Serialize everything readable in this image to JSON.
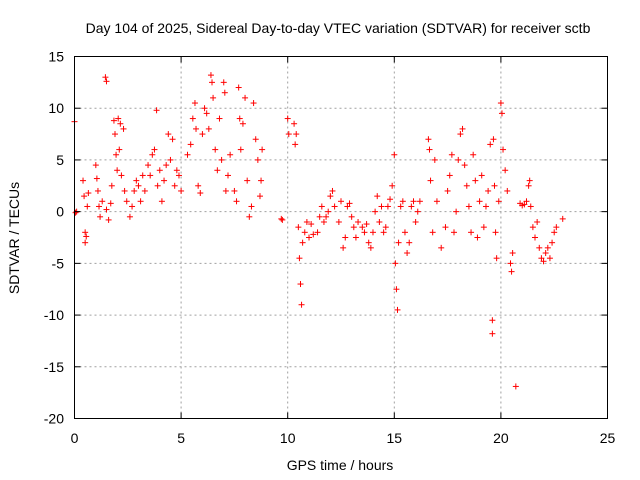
{
  "chart_data": {
    "type": "scatter",
    "title": "Day 104 of 2025, Sidereal Day-to-day VTEC variation (SDTVAR) for receiver sctb",
    "xlabel": "GPS time / hours",
    "ylabel": "SDTVAR / TECUs",
    "xlim": [
      0,
      25
    ],
    "ylim": [
      -20,
      15
    ],
    "xticks": [
      0,
      5,
      10,
      15,
      20,
      25
    ],
    "yticks": [
      -20,
      -15,
      -10,
      -5,
      0,
      5,
      10,
      15
    ],
    "grid": true,
    "marker": "+",
    "marker_color": "#ff0000",
    "series": [
      {
        "name": "SDTVAR",
        "points": [
          [
            0.0,
            8.7
          ],
          [
            0.05,
            -0.1
          ],
          [
            0.1,
            0.0
          ],
          [
            0.4,
            3.0
          ],
          [
            0.45,
            1.5
          ],
          [
            0.5,
            -2.0
          ],
          [
            0.5,
            -3.0
          ],
          [
            0.55,
            -2.4
          ],
          [
            0.6,
            0.5
          ],
          [
            0.65,
            1.8
          ],
          [
            1.0,
            4.5
          ],
          [
            1.05,
            3.2
          ],
          [
            1.1,
            2.0
          ],
          [
            1.15,
            0.5
          ],
          [
            1.2,
            -0.5
          ],
          [
            1.3,
            1.0
          ],
          [
            1.45,
            13.0
          ],
          [
            1.5,
            12.6
          ],
          [
            1.5,
            0.2
          ],
          [
            1.6,
            -0.8
          ],
          [
            1.7,
            0.8
          ],
          [
            1.75,
            2.5
          ],
          [
            1.85,
            8.8
          ],
          [
            1.9,
            7.5
          ],
          [
            1.95,
            5.5
          ],
          [
            2.0,
            4.0
          ],
          [
            2.05,
            9.0
          ],
          [
            2.1,
            6.0
          ],
          [
            2.15,
            8.5
          ],
          [
            2.2,
            3.5
          ],
          [
            2.3,
            8.0
          ],
          [
            2.35,
            2.0
          ],
          [
            2.45,
            1.0
          ],
          [
            2.6,
            -0.5
          ],
          [
            2.7,
            0.5
          ],
          [
            2.8,
            2.0
          ],
          [
            2.9,
            3.0
          ],
          [
            3.0,
            2.5
          ],
          [
            3.1,
            1.0
          ],
          [
            3.2,
            3.5
          ],
          [
            3.3,
            2.0
          ],
          [
            3.45,
            4.5
          ],
          [
            3.55,
            3.5
          ],
          [
            3.65,
            5.5
          ],
          [
            3.75,
            6.0
          ],
          [
            3.85,
            9.8
          ],
          [
            3.9,
            2.5
          ],
          [
            4.0,
            4.0
          ],
          [
            4.1,
            1.0
          ],
          [
            4.2,
            3.0
          ],
          [
            4.3,
            4.5
          ],
          [
            4.4,
            7.5
          ],
          [
            4.5,
            5.0
          ],
          [
            4.6,
            7.0
          ],
          [
            4.7,
            2.5
          ],
          [
            4.8,
            4.0
          ],
          [
            4.9,
            3.5
          ],
          [
            5.0,
            2.0
          ],
          [
            5.3,
            5.5
          ],
          [
            5.45,
            6.5
          ],
          [
            5.55,
            9.0
          ],
          [
            5.65,
            10.5
          ],
          [
            5.7,
            8.0
          ],
          [
            5.8,
            2.5
          ],
          [
            5.9,
            1.8
          ],
          [
            6.0,
            7.5
          ],
          [
            6.1,
            10.0
          ],
          [
            6.2,
            9.5
          ],
          [
            6.3,
            8.0
          ],
          [
            6.4,
            13.2
          ],
          [
            6.45,
            12.5
          ],
          [
            6.5,
            11.0
          ],
          [
            6.6,
            6.0
          ],
          [
            6.7,
            4.0
          ],
          [
            6.8,
            9.0
          ],
          [
            6.9,
            5.0
          ],
          [
            7.0,
            12.5
          ],
          [
            7.05,
            11.5
          ],
          [
            7.1,
            2.0
          ],
          [
            7.2,
            3.5
          ],
          [
            7.3,
            5.5
          ],
          [
            7.5,
            2.0
          ],
          [
            7.6,
            1.0
          ],
          [
            7.7,
            12.0
          ],
          [
            7.75,
            9.0
          ],
          [
            7.8,
            6.0
          ],
          [
            7.9,
            8.5
          ],
          [
            8.0,
            11.0
          ],
          [
            8.1,
            3.0
          ],
          [
            8.2,
            -0.5
          ],
          [
            8.3,
            0.5
          ],
          [
            8.4,
            10.5
          ],
          [
            8.5,
            7.0
          ],
          [
            8.6,
            5.0
          ],
          [
            8.7,
            1.5
          ],
          [
            8.75,
            3.0
          ],
          [
            8.8,
            6.0
          ],
          [
            9.7,
            -0.7
          ],
          [
            9.75,
            -0.8
          ],
          [
            10.0,
            9.0
          ],
          [
            10.05,
            7.5
          ],
          [
            10.3,
            8.5
          ],
          [
            10.35,
            6.5
          ],
          [
            10.4,
            7.5
          ],
          [
            10.5,
            -1.5
          ],
          [
            10.55,
            -4.5
          ],
          [
            10.6,
            -7.0
          ],
          [
            10.65,
            -9.0
          ],
          [
            10.7,
            -3.0
          ],
          [
            10.8,
            -2.0
          ],
          [
            10.9,
            -1.0
          ],
          [
            11.0,
            -2.5
          ],
          [
            11.1,
            -1.2
          ],
          [
            11.2,
            -2.2
          ],
          [
            11.4,
            -2.0
          ],
          [
            11.5,
            -0.5
          ],
          [
            11.6,
            0.5
          ],
          [
            11.7,
            -1.0
          ],
          [
            11.8,
            -0.5
          ],
          [
            11.9,
            0.0
          ],
          [
            12.0,
            1.5
          ],
          [
            12.1,
            2.0
          ],
          [
            12.2,
            0.5
          ],
          [
            12.4,
            -1.0
          ],
          [
            12.5,
            1.0
          ],
          [
            12.6,
            -3.5
          ],
          [
            12.7,
            -2.5
          ],
          [
            12.8,
            0.5
          ],
          [
            12.9,
            0.8
          ],
          [
            13.0,
            -0.5
          ],
          [
            13.1,
            -1.5
          ],
          [
            13.2,
            -2.5
          ],
          [
            13.3,
            -1.0
          ],
          [
            13.5,
            -1.5
          ],
          [
            13.6,
            -2.0
          ],
          [
            13.7,
            -1.2
          ],
          [
            13.8,
            -3.0
          ],
          [
            13.9,
            -3.5
          ],
          [
            14.0,
            -2.0
          ],
          [
            14.1,
            0.0
          ],
          [
            14.2,
            1.5
          ],
          [
            14.3,
            -1.0
          ],
          [
            14.4,
            0.5
          ],
          [
            14.5,
            -2.0
          ],
          [
            14.6,
            -1.5
          ],
          [
            14.7,
            0.5
          ],
          [
            14.8,
            1.2
          ],
          [
            14.9,
            2.5
          ],
          [
            15.0,
            5.5
          ],
          [
            15.05,
            -5.0
          ],
          [
            15.1,
            -7.5
          ],
          [
            15.15,
            -9.5
          ],
          [
            15.2,
            -3.0
          ],
          [
            15.3,
            0.5
          ],
          [
            15.4,
            1.0
          ],
          [
            15.5,
            -2.0
          ],
          [
            15.6,
            -4.0
          ],
          [
            15.7,
            -3.0
          ],
          [
            15.8,
            0.5
          ],
          [
            15.9,
            1.0
          ],
          [
            16.0,
            -1.0
          ],
          [
            16.1,
            0.0
          ],
          [
            16.2,
            1.0
          ],
          [
            16.6,
            7.0
          ],
          [
            16.65,
            6.0
          ],
          [
            16.7,
            3.0
          ],
          [
            16.8,
            -2.0
          ],
          [
            16.9,
            5.0
          ],
          [
            17.0,
            1.0
          ],
          [
            17.2,
            -3.5
          ],
          [
            17.4,
            -1.5
          ],
          [
            17.5,
            2.0
          ],
          [
            17.6,
            3.5
          ],
          [
            17.7,
            5.5
          ],
          [
            17.8,
            -2.0
          ],
          [
            17.9,
            0.0
          ],
          [
            18.0,
            5.0
          ],
          [
            18.1,
            7.5
          ],
          [
            18.2,
            8.0
          ],
          [
            18.3,
            4.5
          ],
          [
            18.4,
            2.5
          ],
          [
            18.5,
            0.5
          ],
          [
            18.6,
            -2.0
          ],
          [
            18.7,
            5.5
          ],
          [
            18.8,
            3.0
          ],
          [
            18.9,
            -2.5
          ],
          [
            19.0,
            1.0
          ],
          [
            19.1,
            3.5
          ],
          [
            19.2,
            -1.5
          ],
          [
            19.3,
            0.5
          ],
          [
            19.4,
            2.0
          ],
          [
            19.5,
            6.5
          ],
          [
            19.6,
            -10.5
          ],
          [
            19.6,
            -11.8
          ],
          [
            19.65,
            7.0
          ],
          [
            19.7,
            2.5
          ],
          [
            19.75,
            -2.0
          ],
          [
            19.8,
            -4.5
          ],
          [
            19.9,
            1.0
          ],
          [
            20.0,
            10.5
          ],
          [
            20.05,
            9.5
          ],
          [
            20.1,
            6.0
          ],
          [
            20.2,
            4.0
          ],
          [
            20.3,
            2.0
          ],
          [
            20.45,
            -5.0
          ],
          [
            20.5,
            -5.8
          ],
          [
            20.55,
            -4.0
          ],
          [
            20.7,
            -16.9
          ],
          [
            20.9,
            0.8
          ],
          [
            21.0,
            0.6
          ],
          [
            21.1,
            0.7
          ],
          [
            21.2,
            1.0
          ],
          [
            21.3,
            2.5
          ],
          [
            21.35,
            3.0
          ],
          [
            21.4,
            0.5
          ],
          [
            21.5,
            -1.5
          ],
          [
            21.6,
            -2.5
          ],
          [
            21.7,
            -1.0
          ],
          [
            21.8,
            -3.5
          ],
          [
            21.9,
            -4.5
          ],
          [
            22.0,
            -4.8
          ],
          [
            22.1,
            -4.0
          ],
          [
            22.2,
            -3.5
          ],
          [
            22.3,
            -4.5
          ],
          [
            22.4,
            -3.0
          ],
          [
            22.5,
            -2.0
          ],
          [
            22.6,
            -1.5
          ],
          [
            22.9,
            -0.7
          ]
        ]
      }
    ]
  }
}
